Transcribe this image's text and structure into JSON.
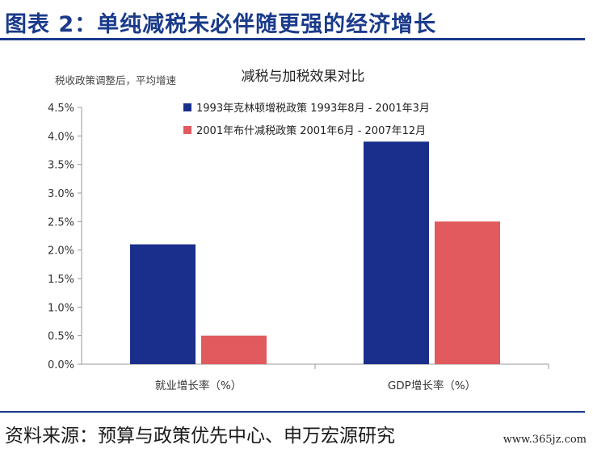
{
  "figure": {
    "heading": "图表 2：单纯减税未必伴随更强的经济增长",
    "source": "资料来源：预算与政策优先中心、申万宏源研究",
    "watermark": "www.365jz.com"
  },
  "colors": {
    "heading": "#1a3a8a",
    "series_1": "#1a2f8c",
    "series_2": "#e05a5e",
    "axis": "#999999"
  },
  "chart_data": {
    "type": "bar",
    "title": "减税与加税效果对比",
    "ylabel": "税收政策调整后，平均增速",
    "xlabel": "",
    "categories": [
      "就业增长率（%）",
      "GDP增长率（%）"
    ],
    "series": [
      {
        "name": "1993年克林顿增税政策 1993年8月 - 2001年3月",
        "values": [
          2.1,
          3.9
        ]
      },
      {
        "name": "2001年布什减税政策 2001年6月 - 2007年12月",
        "values": [
          0.5,
          2.5
        ]
      }
    ],
    "ylim": [
      0,
      4.5
    ],
    "yticks": [
      "0.0%",
      "0.5%",
      "1.0%",
      "1.5%",
      "2.0%",
      "2.5%",
      "3.0%",
      "3.5%",
      "4.0%",
      "4.5%"
    ],
    "grid": false,
    "legend": "top-left"
  }
}
